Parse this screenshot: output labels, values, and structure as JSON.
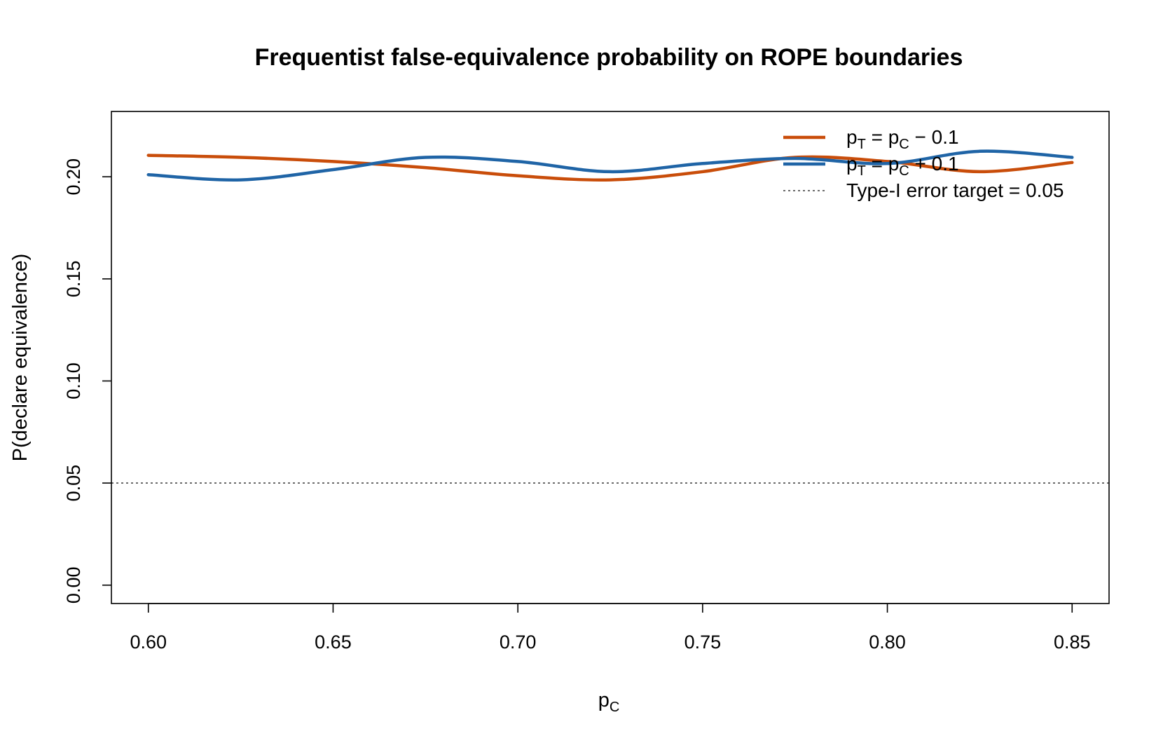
{
  "chart_data": {
    "type": "line",
    "title": "Frequentist false-equivalence probability on ROPE boundaries",
    "xlabel": {
      "main": "p",
      "sub": "C"
    },
    "ylabel": "P(declare equivalence)",
    "xlim": [
      0.59,
      0.86
    ],
    "ylim": [
      -0.009,
      0.232
    ],
    "x_ticks": [
      0.6,
      0.65,
      0.7,
      0.75,
      0.8,
      0.85
    ],
    "x_tick_labels": [
      "0.60",
      "0.65",
      "0.70",
      "0.75",
      "0.80",
      "0.85"
    ],
    "y_ticks": [
      0,
      0.05,
      0.1,
      0.15,
      0.2
    ],
    "y_tick_labels": [
      "0.00",
      "0.05",
      "0.10",
      "0.15",
      "0.20"
    ],
    "grid": false,
    "legend_position": "top-right",
    "series": [
      {
        "name": "p_T = p_C − 0.1",
        "legend_parts": {
          "p1": "p",
          "s1": "T",
          "mid": " = p",
          "s2": "C",
          "tail": " − 0.1"
        },
        "color": "#c94d0a",
        "style": "solid",
        "x": [
          0.6,
          0.625,
          0.65,
          0.675,
          0.7,
          0.725,
          0.75,
          0.775,
          0.8,
          0.825,
          0.85
        ],
        "y": [
          0.2105,
          0.2095,
          0.2075,
          0.2045,
          0.2005,
          0.1985,
          0.2025,
          0.2095,
          0.2075,
          0.2025,
          0.207
        ]
      },
      {
        "name": "p_T = p_C + 0.1",
        "legend_parts": {
          "p1": "p",
          "s1": "T",
          "mid": " = p",
          "s2": "C",
          "tail": " + 0.1"
        },
        "color": "#1f64a6",
        "style": "solid",
        "x": [
          0.6,
          0.625,
          0.65,
          0.675,
          0.7,
          0.725,
          0.75,
          0.775,
          0.8,
          0.825,
          0.85
        ],
        "y": [
          0.201,
          0.1985,
          0.2035,
          0.2095,
          0.2075,
          0.2025,
          0.2065,
          0.209,
          0.2065,
          0.2125,
          0.2095
        ]
      }
    ],
    "reference_lines": [
      {
        "name": "Type-I error target = 0.05",
        "y": 0.05,
        "style": "dotted",
        "color": "#555555"
      }
    ]
  }
}
